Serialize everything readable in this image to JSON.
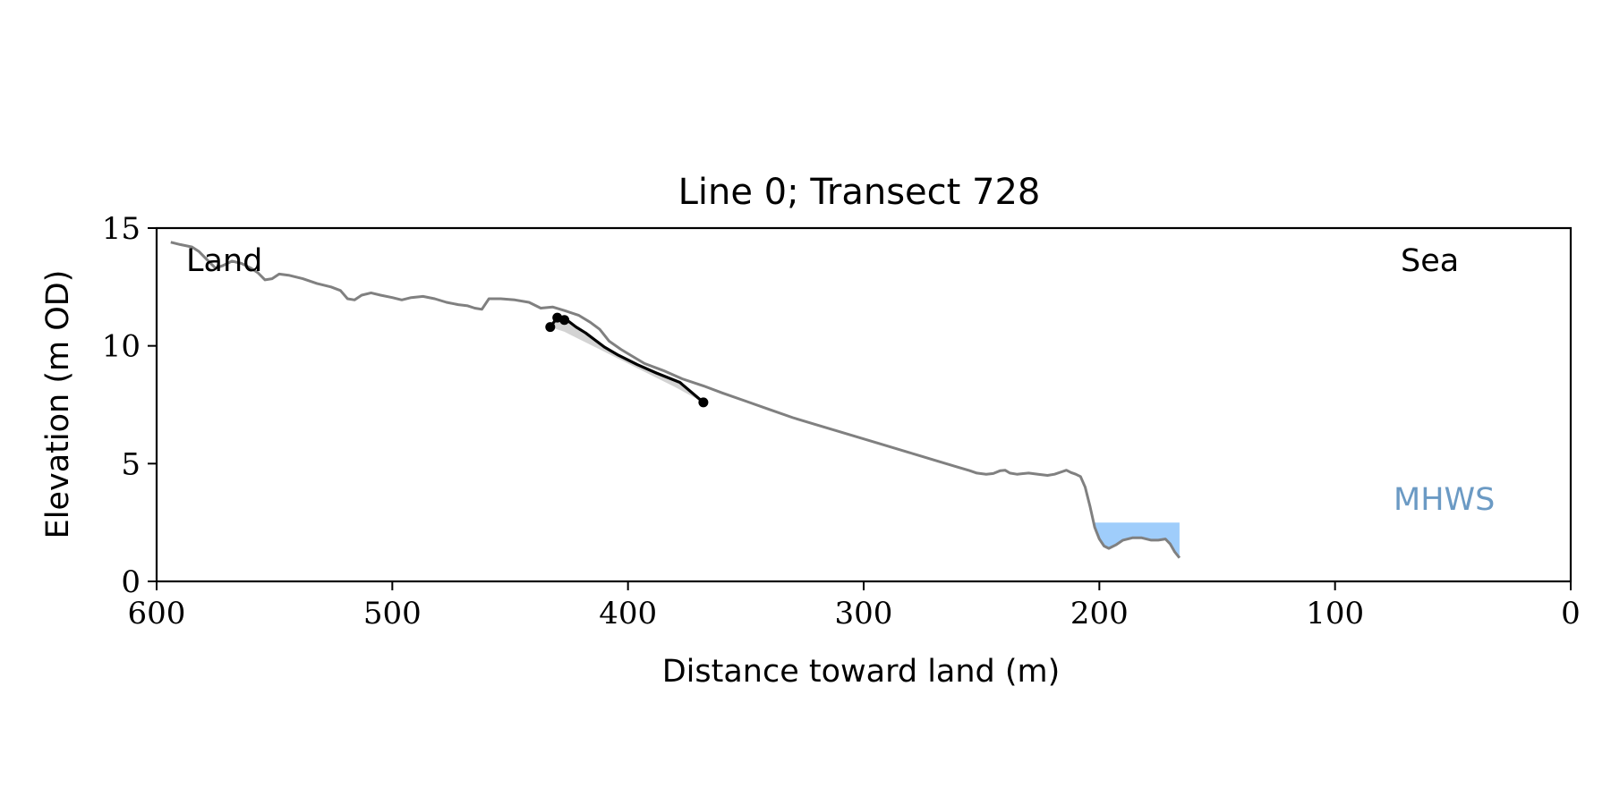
{
  "chart_data": {
    "type": "line",
    "title": "Line 0; Transect 728",
    "xlabel": "Distance toward land (m)",
    "ylabel": "Elevation (m OD)",
    "xlim": [
      600,
      0
    ],
    "ylim": [
      0,
      15
    ],
    "xticks": [
      600,
      500,
      400,
      300,
      200,
      100,
      0
    ],
    "yticks": [
      0,
      5,
      10,
      15
    ],
    "grid": false,
    "legend": "none",
    "annotations": {
      "land": "Land",
      "sea": "Sea",
      "mhws": "MHWS"
    },
    "colors": {
      "profile": "#808080",
      "segment": "#000000",
      "shade": "#d3d3d3",
      "water": "#9fcdfb",
      "mhws_text": "#6b9ac4"
    },
    "series": [
      {
        "role": "profile",
        "points": [
          [
            594,
            14.4
          ],
          [
            590,
            14.3
          ],
          [
            585,
            14.2
          ],
          [
            582,
            14.0
          ],
          [
            578,
            13.6
          ],
          [
            575,
            13.3
          ],
          [
            572,
            13.4
          ],
          [
            568,
            13.6
          ],
          [
            564,
            13.5
          ],
          [
            560,
            13.3
          ],
          [
            557,
            13.1
          ],
          [
            554,
            12.8
          ],
          [
            551,
            12.85
          ],
          [
            548,
            13.05
          ],
          [
            544,
            13.0
          ],
          [
            538,
            12.85
          ],
          [
            532,
            12.65
          ],
          [
            526,
            12.5
          ],
          [
            522,
            12.35
          ],
          [
            519,
            12.0
          ],
          [
            516,
            11.95
          ],
          [
            513,
            12.15
          ],
          [
            509,
            12.25
          ],
          [
            505,
            12.15
          ],
          [
            500,
            12.05
          ],
          [
            496,
            11.95
          ],
          [
            492,
            12.05
          ],
          [
            487,
            12.1
          ],
          [
            482,
            12.0
          ],
          [
            477,
            11.85
          ],
          [
            472,
            11.75
          ],
          [
            468,
            11.7
          ],
          [
            465,
            11.6
          ],
          [
            462,
            11.55
          ],
          [
            459,
            12.0
          ],
          [
            454,
            12.0
          ],
          [
            448,
            11.95
          ],
          [
            442,
            11.85
          ],
          [
            437,
            11.6
          ],
          [
            432,
            11.65
          ],
          [
            427,
            11.5
          ],
          [
            421,
            11.3
          ],
          [
            416,
            11.0
          ],
          [
            412,
            10.7
          ],
          [
            408,
            10.2
          ],
          [
            403,
            9.85
          ],
          [
            398,
            9.55
          ],
          [
            393,
            9.25
          ],
          [
            385,
            8.95
          ],
          [
            377,
            8.6
          ],
          [
            368,
            8.3
          ],
          [
            360,
            8.0
          ],
          [
            350,
            7.65
          ],
          [
            340,
            7.3
          ],
          [
            330,
            6.95
          ],
          [
            320,
            6.65
          ],
          [
            310,
            6.35
          ],
          [
            300,
            6.05
          ],
          [
            290,
            5.75
          ],
          [
            280,
            5.45
          ],
          [
            270,
            5.15
          ],
          [
            260,
            4.85
          ],
          [
            255,
            4.7
          ],
          [
            252,
            4.6
          ],
          [
            248,
            4.55
          ],
          [
            245,
            4.58
          ],
          [
            242,
            4.7
          ],
          [
            240,
            4.72
          ],
          [
            238,
            4.6
          ],
          [
            235,
            4.55
          ],
          [
            230,
            4.6
          ],
          [
            226,
            4.55
          ],
          [
            222,
            4.5
          ],
          [
            219,
            4.55
          ],
          [
            216,
            4.65
          ],
          [
            214,
            4.72
          ],
          [
            212,
            4.62
          ],
          [
            210,
            4.55
          ],
          [
            208,
            4.45
          ],
          [
            206,
            4.0
          ],
          [
            204,
            3.2
          ],
          [
            202,
            2.3
          ],
          [
            200,
            1.8
          ],
          [
            198,
            1.5
          ],
          [
            196,
            1.4
          ],
          [
            193,
            1.55
          ],
          [
            190,
            1.75
          ],
          [
            186,
            1.85
          ],
          [
            182,
            1.85
          ],
          [
            178,
            1.75
          ],
          [
            175,
            1.75
          ],
          [
            172,
            1.8
          ],
          [
            170,
            1.6
          ],
          [
            168,
            1.25
          ],
          [
            166,
            1.0
          ]
        ]
      },
      {
        "role": "segment",
        "points": [
          [
            433,
            10.8
          ],
          [
            430,
            11.2
          ],
          [
            428,
            11.15
          ],
          [
            426,
            11.1
          ],
          [
            422,
            10.8
          ],
          [
            418,
            10.55
          ],
          [
            414,
            10.25
          ],
          [
            410,
            9.95
          ],
          [
            404,
            9.6
          ],
          [
            396,
            9.2
          ],
          [
            388,
            8.85
          ],
          [
            378,
            8.45
          ],
          [
            368,
            7.6
          ]
        ]
      },
      {
        "role": "markers",
        "points": [
          [
            433,
            10.8
          ],
          [
            430,
            11.2
          ],
          [
            427,
            11.1
          ],
          [
            368,
            7.6
          ]
        ]
      }
    ],
    "shade_region": {
      "upper": [
        [
          433,
          10.8
        ],
        [
          430,
          11.2
        ],
        [
          426,
          11.1
        ],
        [
          421,
          10.7
        ],
        [
          414,
          10.2
        ],
        [
          404,
          9.6
        ],
        [
          396,
          9.2
        ],
        [
          388,
          8.85
        ],
        [
          378,
          8.45
        ],
        [
          368,
          7.6
        ]
      ],
      "lower": [
        [
          368,
          7.6
        ],
        [
          380,
          8.25
        ],
        [
          392,
          8.85
        ],
        [
          403,
          9.4
        ],
        [
          412,
          9.85
        ],
        [
          420,
          10.25
        ],
        [
          427,
          10.6
        ],
        [
          433,
          10.8
        ]
      ]
    },
    "water_fill": {
      "level": 2.5,
      "x_range": [
        205,
        166
      ]
    }
  }
}
